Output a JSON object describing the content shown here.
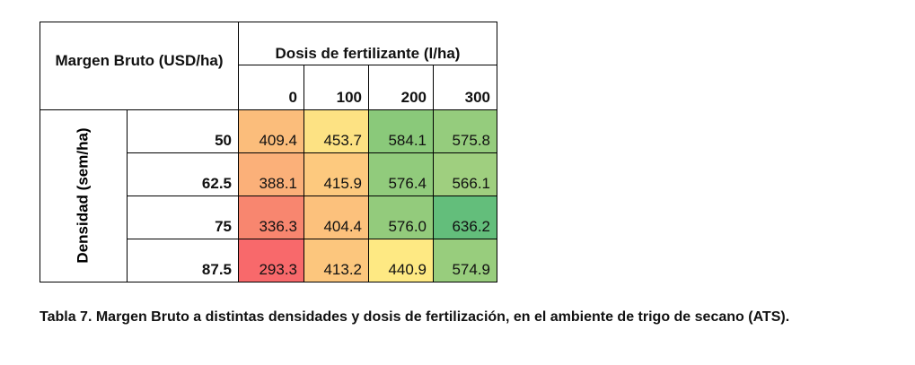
{
  "header": {
    "corner": "Margen Bruto (USD/ha)",
    "dose_title": "Dosis de fertilizante (l/ha)",
    "doses": [
      "0",
      "100",
      "200",
      "300"
    ]
  },
  "row_header": "Densidad (sem/ha)",
  "rows": [
    {
      "density": "50",
      "values": [
        "409.4",
        "453.7",
        "584.1",
        "575.8"
      ],
      "colors": [
        "#fbbd7b",
        "#fde283",
        "#8ac97a",
        "#95cc7d"
      ]
    },
    {
      "density": "62.5",
      "values": [
        "388.1",
        "415.9",
        "576.4",
        "566.1"
      ],
      "colors": [
        "#fbb079",
        "#fdc97e",
        "#91cb7c",
        "#9fcf7f"
      ]
    },
    {
      "density": "75",
      "values": [
        "336.3",
        "404.4",
        "576.0",
        "636.2"
      ],
      "colors": [
        "#f8866f",
        "#fcc17c",
        "#93cb7c",
        "#63be7b"
      ]
    },
    {
      "density": "87.5",
      "values": [
        "293.3",
        "413.2",
        "440.9",
        "574.9"
      ],
      "colors": [
        "#f8696b",
        "#fcc67d",
        "#fee983",
        "#98cd7d"
      ]
    }
  ],
  "caption": "Tabla 7. Margen Bruto a distintas densidades y dosis de fertilización, en el ambiente de trigo de secano (ATS)."
}
